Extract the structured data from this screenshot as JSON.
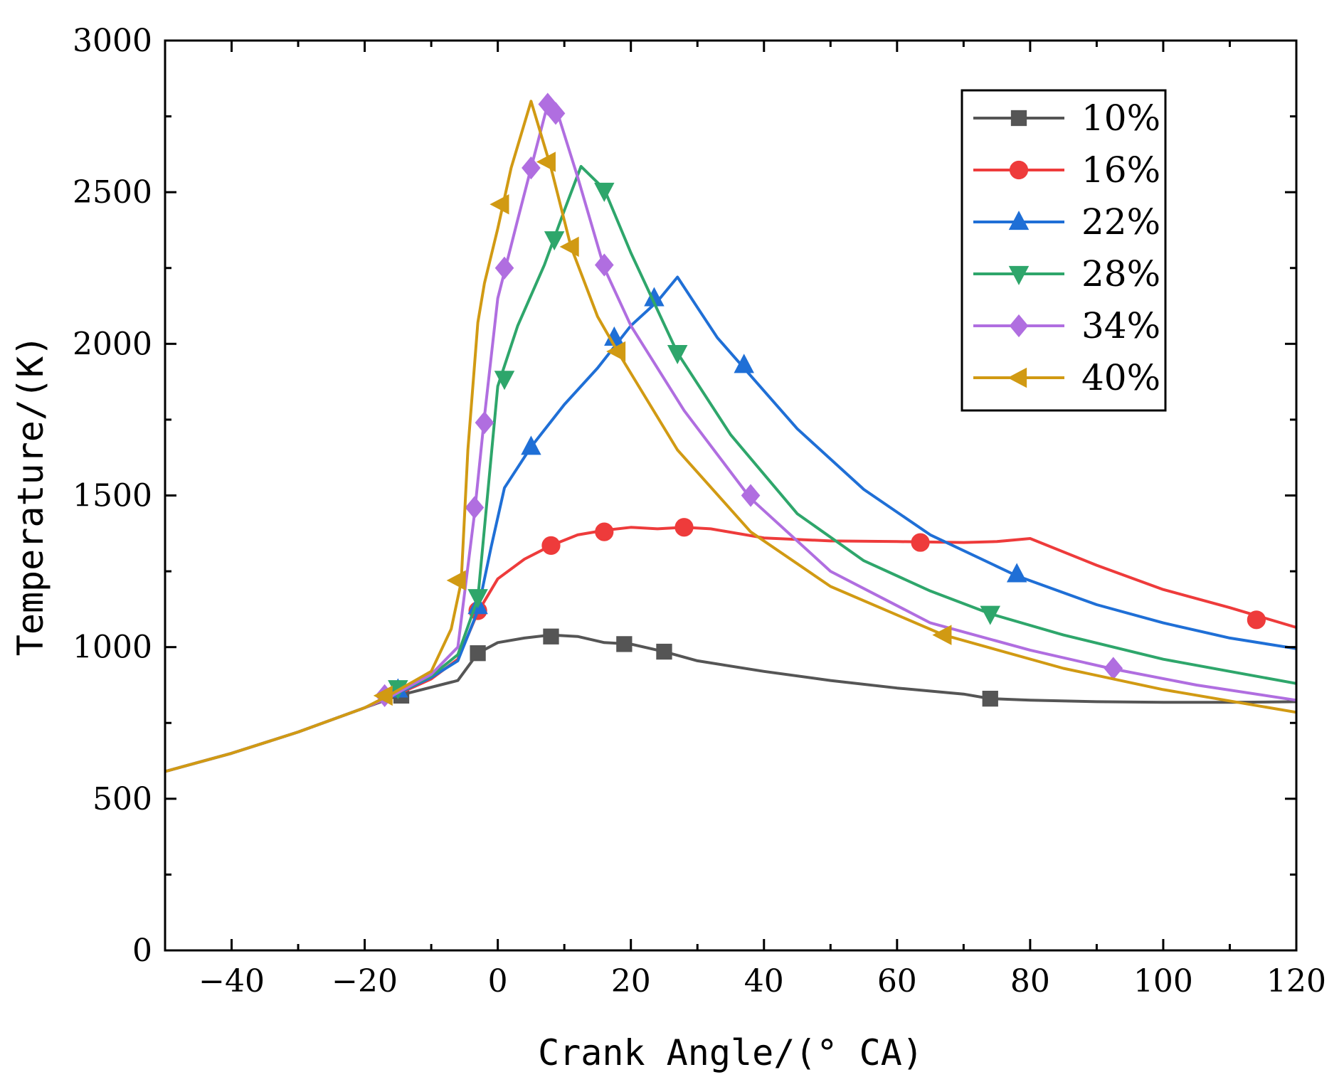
{
  "chart_data": {
    "type": "line",
    "title": "",
    "xlabel": "Crank Angle/(° CA)",
    "ylabel": "Temperature/(K)",
    "xlim": [
      -50,
      120
    ],
    "ylim": [
      0,
      3000
    ],
    "xticks": [
      -40,
      -20,
      0,
      20,
      40,
      60,
      80,
      100,
      120
    ],
    "yticks": [
      0,
      500,
      1000,
      1500,
      2000,
      2500,
      3000
    ],
    "legend_position": "top-right",
    "series": [
      {
        "name": "10%",
        "color": "#555555",
        "marker": "square",
        "x": [
          -50,
          -40,
          -30,
          -20,
          -15,
          -6,
          -3,
          0,
          4,
          8,
          12,
          16,
          20,
          25,
          30,
          40,
          50,
          60,
          70,
          74,
          80,
          90,
          100,
          110,
          120
        ],
        "y": [
          590,
          650,
          720,
          800,
          840,
          890,
          980,
          1015,
          1030,
          1040,
          1035,
          1015,
          1010,
          985,
          955,
          920,
          890,
          865,
          845,
          830,
          825,
          820,
          818,
          818,
          820
        ],
        "markers": [
          [
            -14.5,
            840
          ],
          [
            -3,
            980
          ],
          [
            8,
            1035
          ],
          [
            19,
            1010
          ],
          [
            25,
            985
          ],
          [
            74,
            830
          ]
        ]
      },
      {
        "name": "16%",
        "color": "#ee3b3b",
        "marker": "circle",
        "x": [
          -50,
          -40,
          -30,
          -20,
          -15,
          -10,
          -6,
          -3,
          0,
          4,
          8,
          12,
          16,
          20,
          24,
          28,
          32,
          40,
          50,
          60,
          70,
          75,
          80,
          90,
          100,
          110,
          120
        ],
        "y": [
          590,
          650,
          720,
          800,
          845,
          895,
          960,
          1115,
          1225,
          1290,
          1335,
          1370,
          1385,
          1395,
          1390,
          1395,
          1390,
          1360,
          1350,
          1348,
          1345,
          1348,
          1358,
          1270,
          1190,
          1130,
          1065
        ],
        "markers": [
          [
            -3,
            1120
          ],
          [
            8,
            1335
          ],
          [
            16,
            1380
          ],
          [
            28,
            1395
          ],
          [
            63.5,
            1345
          ],
          [
            114,
            1090
          ]
        ]
      },
      {
        "name": "22%",
        "color": "#1f6fd6",
        "marker": "triangle-up",
        "x": [
          -50,
          -40,
          -30,
          -20,
          -15,
          -10,
          -6,
          -3,
          -1,
          1,
          5,
          10,
          15,
          20,
          24,
          27,
          30,
          33,
          37,
          45,
          55,
          65,
          78,
          90,
          100,
          110,
          120
        ],
        "y": [
          590,
          650,
          720,
          800,
          848,
          900,
          955,
          1120,
          1330,
          1525,
          1660,
          1800,
          1920,
          2060,
          2140,
          2220,
          2120,
          2020,
          1920,
          1720,
          1520,
          1370,
          1235,
          1140,
          1080,
          1030,
          995
        ],
        "markers": [
          [
            -15,
            860
          ],
          [
            -3,
            1135
          ],
          [
            5,
            1660
          ],
          [
            17.5,
            2020
          ],
          [
            23.5,
            2150
          ],
          [
            37,
            1930
          ],
          [
            78,
            1240
          ]
        ]
      },
      {
        "name": "28%",
        "color": "#2ea66b",
        "marker": "triangle-down",
        "x": [
          -50,
          -40,
          -30,
          -20,
          -15,
          -10,
          -6,
          -3,
          0,
          3,
          7,
          10,
          12.5,
          16,
          20,
          27,
          35,
          45,
          55,
          65,
          74,
          85,
          100,
          110,
          120
        ],
        "y": [
          590,
          650,
          720,
          800,
          850,
          905,
          975,
          1160,
          1860,
          2060,
          2260,
          2440,
          2585,
          2510,
          2300,
          1970,
          1700,
          1440,
          1285,
          1185,
          1110,
          1040,
          960,
          920,
          880
        ],
        "markers": [
          [
            -15,
            865
          ],
          [
            -3,
            1165
          ],
          [
            1,
            1885
          ],
          [
            8.5,
            2345
          ],
          [
            16,
            2505
          ],
          [
            27,
            1970
          ],
          [
            74,
            1110
          ]
        ]
      },
      {
        "name": "34%",
        "color": "#b06ee0",
        "marker": "diamond",
        "x": [
          -50,
          -40,
          -30,
          -20,
          -16,
          -10,
          -6,
          -3.5,
          -2,
          0,
          3,
          5,
          7.5,
          9,
          12,
          16,
          20,
          28,
          38,
          50,
          65,
          80,
          92,
          105,
          120
        ],
        "y": [
          590,
          650,
          720,
          800,
          838,
          910,
          1000,
          1440,
          1760,
          2150,
          2410,
          2580,
          2790,
          2760,
          2550,
          2250,
          2060,
          1780,
          1490,
          1250,
          1080,
          990,
          930,
          875,
          825
        ],
        "markers": [
          [
            -17,
            840
          ],
          [
            -3.5,
            1460
          ],
          [
            -2,
            1740
          ],
          [
            1,
            2250
          ],
          [
            5,
            2580
          ],
          [
            7.5,
            2790
          ],
          [
            8.7,
            2760
          ],
          [
            16,
            2260
          ],
          [
            38,
            1500
          ],
          [
            92.5,
            930
          ]
        ]
      },
      {
        "name": "40%",
        "color": "#d19a13",
        "marker": "triangle-left",
        "x": [
          -50,
          -40,
          -30,
          -20,
          -16,
          -10,
          -7,
          -5.5,
          -4.5,
          -3,
          -2,
          0,
          2,
          5,
          8,
          11,
          15,
          18,
          27,
          38,
          50,
          67,
          85,
          100,
          120
        ],
        "y": [
          590,
          650,
          720,
          800,
          845,
          920,
          1060,
          1215,
          1650,
          2070,
          2200,
          2380,
          2580,
          2800,
          2580,
          2320,
          2090,
          1975,
          1650,
          1380,
          1200,
          1040,
          930,
          860,
          785
        ],
        "markers": [
          [
            -17,
            840
          ],
          [
            -6,
            1220
          ],
          [
            0.5,
            2460
          ],
          [
            7.5,
            2600
          ],
          [
            11,
            2320
          ],
          [
            18,
            1975
          ],
          [
            67,
            1040
          ]
        ]
      }
    ]
  }
}
